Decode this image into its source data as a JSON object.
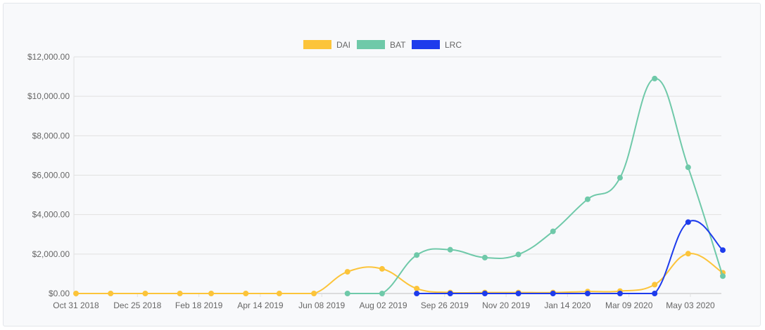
{
  "chart_data": {
    "type": "line",
    "title": "",
    "xlabel": "",
    "ylabel": "",
    "legend_position": "top-center",
    "grid": true,
    "ylim": [
      0,
      12000
    ],
    "y_ticks": [
      "$0.00",
      "$2,000.00",
      "$4,000.00",
      "$6,000.00",
      "$8,000.00",
      "$10,000.00",
      "$12,000.00"
    ],
    "x_ticks": [
      "Oct 31 2018",
      "Dec 25 2018",
      "Feb 18 2019",
      "Apr 14 2019",
      "Jun 08 2019",
      "Aug 02 2019",
      "Sep 26 2019",
      "Nov 20 2019",
      "Jan 14 2020",
      "Mar 09 2020",
      "May 03 2020"
    ],
    "x": [
      "2018-10-31",
      "2018-12-01",
      "2019-01-01",
      "2019-02-01",
      "2019-03-01",
      "2019-04-01",
      "2019-05-01",
      "2019-06-01",
      "2019-07-01",
      "2019-08-01",
      "2019-09-01",
      "2019-10-01",
      "2019-11-01",
      "2019-12-01",
      "2020-01-01",
      "2020-02-01",
      "2020-03-01",
      "2020-04-01",
      "2020-05-01",
      "2020-06-01"
    ],
    "series": [
      {
        "name": "DAI",
        "color": "#fcc43a",
        "values": [
          0,
          0,
          0,
          0,
          0,
          0,
          0,
          0,
          1100,
          1250,
          250,
          50,
          50,
          50,
          50,
          100,
          120,
          450,
          2020,
          1050
        ]
      },
      {
        "name": "BAT",
        "color": "#6fc9a9",
        "values": [
          null,
          null,
          null,
          null,
          null,
          null,
          null,
          null,
          0,
          0,
          1950,
          2220,
          1820,
          1980,
          3150,
          4780,
          5870,
          10900,
          6400,
          880
        ]
      },
      {
        "name": "LRC",
        "color": "#1e3cec",
        "values": [
          null,
          null,
          null,
          null,
          null,
          null,
          null,
          null,
          null,
          null,
          0,
          0,
          0,
          0,
          0,
          0,
          0,
          0,
          3620,
          2200
        ]
      }
    ]
  }
}
